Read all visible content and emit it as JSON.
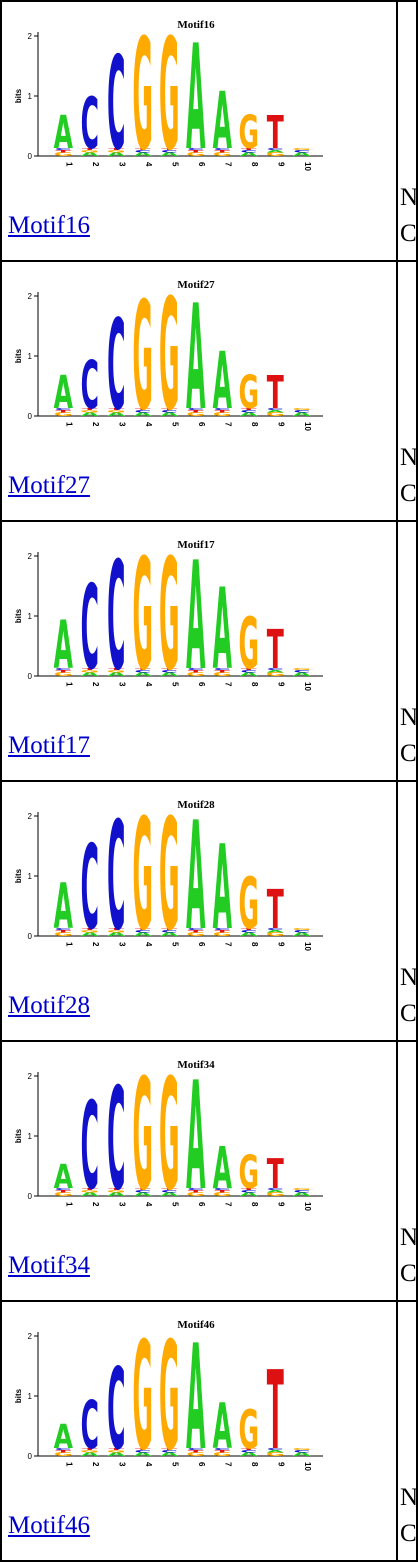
{
  "motifs": [
    {
      "title": "Motif16",
      "link": "Motif16",
      "side_top": "N",
      "side_bottom": "C"
    },
    {
      "title": "Motif27",
      "link": "Motif27",
      "side_top": "N",
      "side_bottom": "C"
    },
    {
      "title": "Motif17",
      "link": "Motif17",
      "side_top": "N",
      "side_bottom": "C"
    },
    {
      "title": "Motif28",
      "link": "Motif28",
      "side_top": "N",
      "side_bottom": "C"
    },
    {
      "title": "Motif34",
      "link": "Motif34",
      "side_top": "N",
      "side_bottom": "C"
    },
    {
      "title": "Motif46",
      "link": "Motif46",
      "side_top": "N",
      "side_bottom": "C"
    }
  ],
  "logo": {
    "y_axis_label": "bits",
    "y_ticks": [
      "0",
      "1",
      "2"
    ],
    "positions": [
      "1",
      "2",
      "3",
      "4",
      "5",
      "6",
      "7",
      "8",
      "9",
      "10"
    ],
    "consensus": [
      "A",
      "C",
      "C",
      "G",
      "G",
      "A",
      "A",
      "G",
      "T",
      ""
    ],
    "colors": {
      "A": "#22cc22",
      "C": "#1111cc",
      "G": "#ffaa00",
      "T": "#dd1111"
    }
  }
}
